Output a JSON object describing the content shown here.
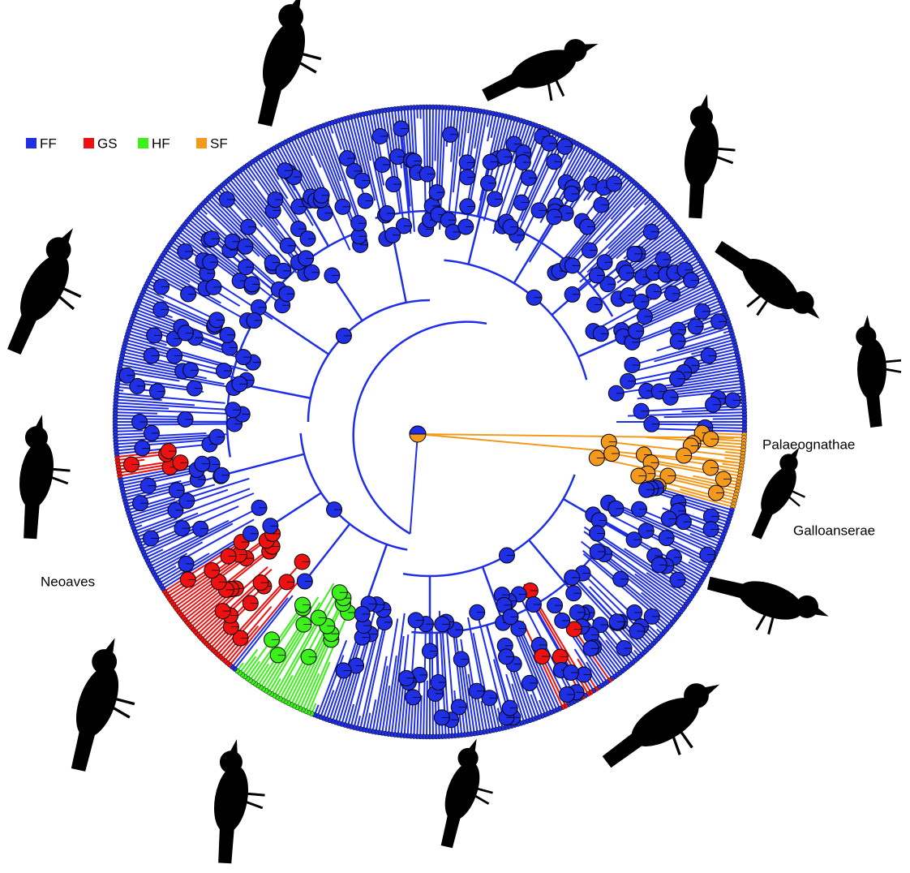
{
  "legend": {
    "items": [
      {
        "label": "FF",
        "color": "#1f2fe6"
      },
      {
        "label": "GS",
        "color": "#ee1111"
      },
      {
        "label": "HF",
        "color": "#3cf01a"
      },
      {
        "label": "SF",
        "color": "#f39a1c"
      }
    ]
  },
  "clade_labels": {
    "palaeognathae": "Palaeognathae",
    "galloanserae": "Galloanserae",
    "neoaves": "Neoaves"
  }
}
